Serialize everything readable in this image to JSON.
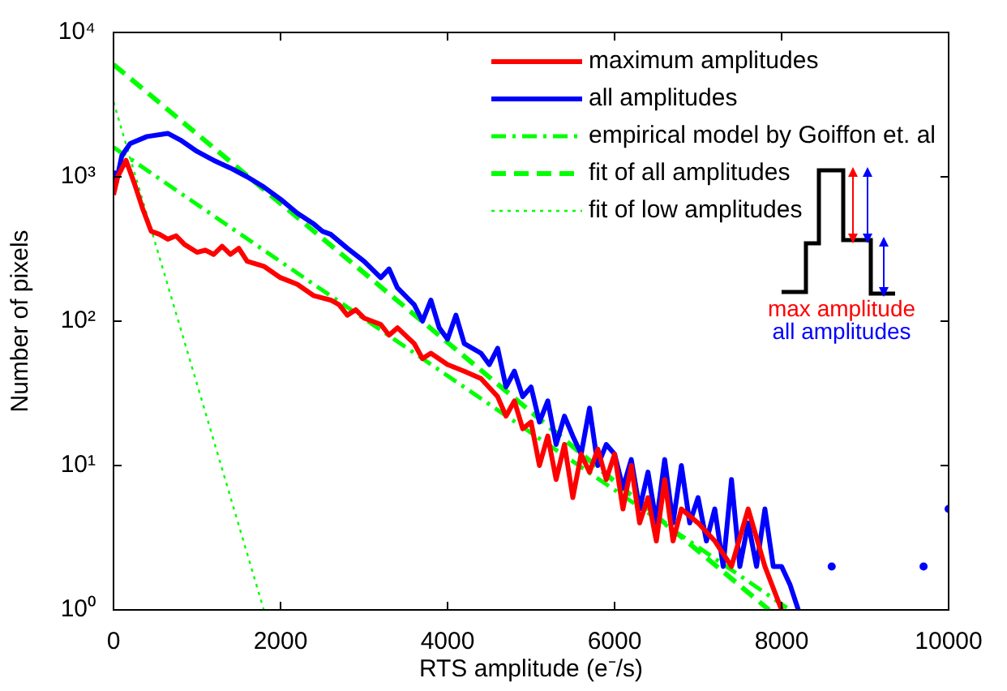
{
  "chart_data": {
    "type": "line",
    "xlabel": "RTS amplitude (e⁻/s)",
    "ylabel": "Number of pixels",
    "log": "y",
    "grid": false,
    "legend": "top right",
    "xlim": [
      0,
      10000
    ],
    "xticks": [
      0,
      2000,
      4000,
      6000,
      8000,
      10000
    ],
    "ylim": [
      1,
      10000
    ],
    "yticks": [
      {
        "value": 1,
        "label": "10⁰"
      },
      {
        "value": 10,
        "label": "10¹"
      },
      {
        "value": 100,
        "label": "10²"
      },
      {
        "value": 1000,
        "label": "10³"
      },
      {
        "value": 10000,
        "label": "10⁴"
      }
    ],
    "annotations": [
      "max amplitude",
      "all amplitudes"
    ],
    "series": [
      {
        "name": "maximum amplitudes",
        "color": "#ff0000",
        "line_style": "solid",
        "x": [
          0,
          50,
          150,
          250,
          350,
          450,
          550,
          650,
          750,
          850,
          1000,
          1100,
          1200,
          1300,
          1400,
          1500,
          1600,
          1800,
          2000,
          2100,
          2200,
          2400,
          2600,
          2700,
          2800,
          2900,
          3000,
          3200,
          3300,
          3400,
          3600,
          3700,
          3800,
          4000,
          4200,
          4400,
          4600,
          4700,
          4800,
          4900,
          5000,
          5100,
          5200,
          5300,
          5400,
          5500,
          5600,
          5700,
          5800,
          5900,
          6000,
          6100,
          6200,
          6300,
          6400,
          6500,
          6600,
          6700,
          6800,
          7000,
          7200,
          7400,
          7600,
          7800,
          8000
        ],
        "values": [
          750,
          1000,
          1300,
          900,
          600,
          420,
          400,
          370,
          390,
          340,
          300,
          310,
          290,
          330,
          290,
          320,
          260,
          240,
          200,
          190,
          180,
          150,
          140,
          130,
          110,
          120,
          105,
          95,
          80,
          90,
          70,
          55,
          60,
          50,
          45,
          40,
          30,
          22,
          28,
          18,
          20,
          10,
          16,
          8,
          14,
          6,
          12,
          9,
          13,
          8,
          12,
          5,
          10,
          4,
          6,
          3,
          8,
          3,
          5,
          4,
          3,
          2,
          5,
          2,
          1
        ]
      },
      {
        "name": "all amplitudes",
        "color": "#0000ff",
        "line_style": "solid",
        "x": [
          0,
          30,
          100,
          200,
          400,
          650,
          800,
          1000,
          1200,
          1400,
          1600,
          1800,
          2000,
          2200,
          2400,
          2500,
          2600,
          2800,
          3000,
          3200,
          3300,
          3400,
          3600,
          3700,
          3800,
          3900,
          4000,
          4100,
          4200,
          4400,
          4500,
          4600,
          4700,
          4800,
          4900,
          5000,
          5100,
          5200,
          5300,
          5400,
          5500,
          5600,
          5700,
          5800,
          5900,
          6000,
          6100,
          6200,
          6300,
          6400,
          6500,
          6600,
          6700,
          6800,
          6900,
          7000,
          7100,
          7200,
          7300,
          7400,
          7500,
          7600,
          7700,
          7800,
          7900,
          8000,
          8100,
          8200
        ],
        "values": [
          1100,
          900,
          1400,
          1700,
          1900,
          2000,
          1800,
          1500,
          1300,
          1150,
          1000,
          850,
          700,
          560,
          470,
          420,
          400,
          320,
          260,
          200,
          230,
          170,
          130,
          100,
          140,
          90,
          75,
          110,
          70,
          60,
          50,
          65,
          35,
          45,
          30,
          35,
          20,
          28,
          14,
          22,
          16,
          12,
          25,
          10,
          14,
          12,
          7,
          11,
          5,
          9,
          4,
          11,
          4,
          10,
          4,
          6,
          3,
          5,
          2,
          8,
          2,
          4,
          2,
          5,
          2,
          2,
          1.5,
          1
        ]
      },
      {
        "type": "scatter",
        "color": "#0000ff",
        "marker": "circle",
        "x": [
          8600,
          9700,
          10000
        ],
        "values": [
          2,
          2,
          5
        ]
      },
      {
        "name": "empirical model by Goiffon et. al",
        "color": "#00ff00",
        "line_style": "dashdot",
        "x": [
          0,
          8100
        ],
        "values": [
          1600,
          1
        ]
      },
      {
        "name": "fit of all amplitudes",
        "color": "#00ff00",
        "line_style": "dashed",
        "x": [
          0,
          7850
        ],
        "values": [
          6000,
          1
        ]
      },
      {
        "name": "fit of low amplitudes",
        "color": "#00ff00",
        "line_style": "dotted",
        "x": [
          0,
          1800
        ],
        "values": [
          3300,
          1
        ]
      }
    ]
  }
}
